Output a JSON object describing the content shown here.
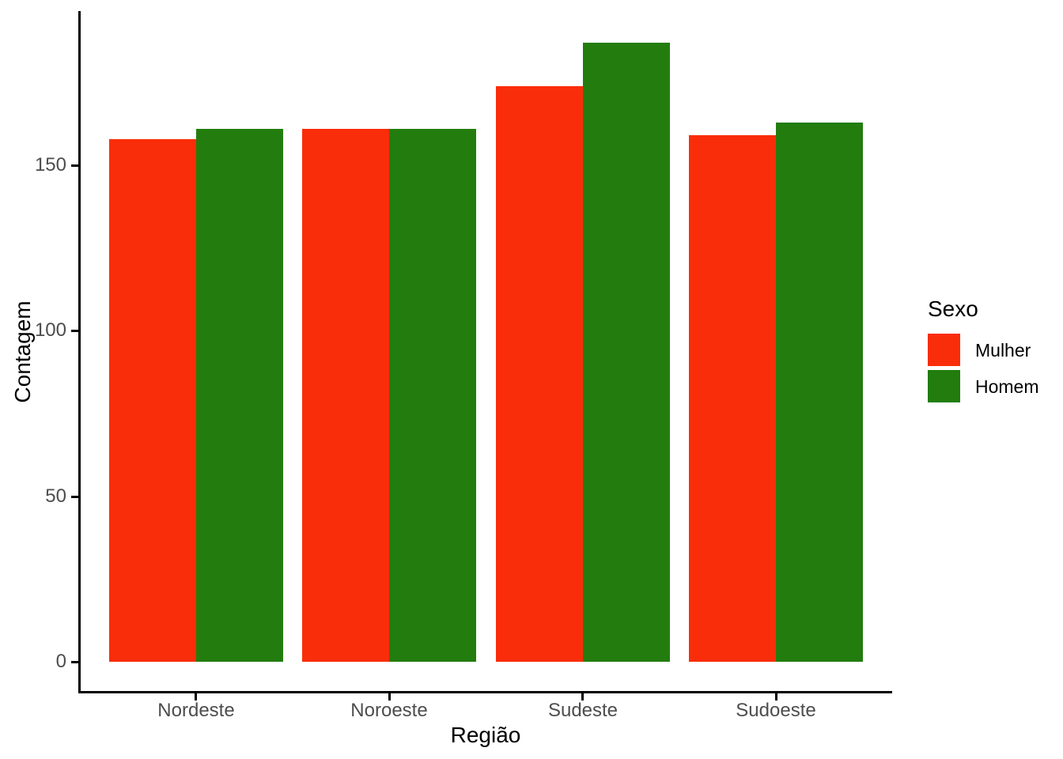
{
  "chart_data": {
    "type": "bar",
    "title": "",
    "categories": [
      "Nordeste",
      "Noroeste",
      "Sudeste",
      "Sudoeste"
    ],
    "series": [
      {
        "name": "Mulher",
        "color": "#FA2D0A",
        "values": [
          158,
          161,
          174,
          159
        ]
      },
      {
        "name": "Homem",
        "color": "#227D0E",
        "values": [
          161,
          161,
          187,
          163
        ]
      }
    ],
    "xlabel": "Região",
    "ylabel": "Contagem",
    "y_ticks": [
      0,
      50,
      100,
      150
    ],
    "ylim": [
      0,
      196
    ],
    "grid": false,
    "legend": {
      "title": "Sexo",
      "position": "right"
    },
    "style": {
      "bar_colors": [
        "#FA2D0A",
        "#227D0E"
      ],
      "axis_text_color": "#4D4D4D",
      "axis_line_color": "#000000",
      "background": "#FFFFFF"
    }
  }
}
